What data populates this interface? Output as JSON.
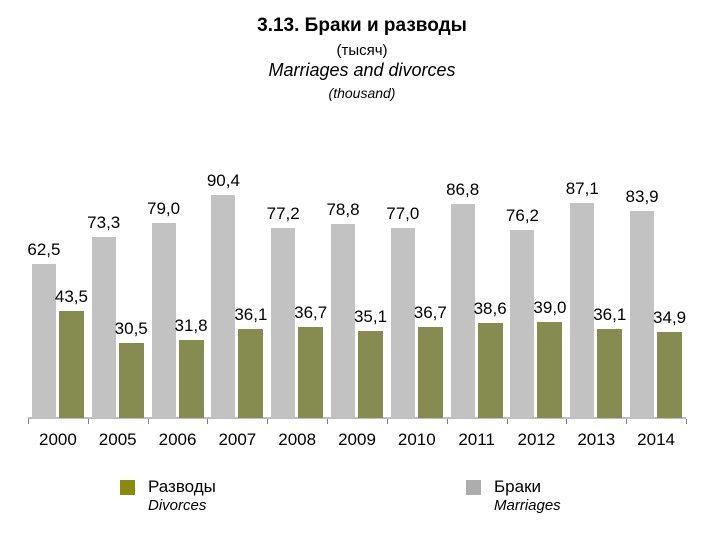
{
  "header": {
    "title_ru": "3.13. Браки и разводы",
    "unit_ru": "(тысяч)",
    "title_en": "Marriages and divorces",
    "unit_en": "(thousand)"
  },
  "legend": {
    "divorces": {
      "ru": "Разводы",
      "en": "Divorces",
      "swatch_color": "#8a8b0a"
    },
    "marriages": {
      "ru": "Браки",
      "en": "Marriages",
      "swatch_color": "#adadad"
    }
  },
  "colors": {
    "marriages_bar": "#c2c2c2",
    "divorces_bar": "#868c50",
    "axis_line": "#bdbdbd",
    "tick": "#7f7f7f",
    "text": "#000000",
    "background": "#ffffff"
  },
  "chart_data": {
    "type": "bar",
    "title": "3.13. Браки и разводы",
    "subtitle": "(тысяч)",
    "title_en": "Marriages and divorces",
    "subtitle_en": "(thousand)",
    "xlabel": "",
    "ylabel": "",
    "ylim": [
      0,
      100
    ],
    "grid": false,
    "legend_position": "bottom",
    "value_labels": true,
    "decimal_separator": ",",
    "categories": [
      "2000",
      "2005",
      "2006",
      "2007",
      "2008",
      "2009",
      "2010",
      "2011",
      "2012",
      "2013",
      "2014"
    ],
    "series": [
      {
        "name": "Браки",
        "name_en": "Marriages",
        "color": "#c2c2c2",
        "values": [
          62.5,
          73.3,
          79.0,
          90.4,
          77.2,
          78.8,
          77.0,
          86.8,
          76.2,
          87.1,
          83.9
        ]
      },
      {
        "name": "Разводы",
        "name_en": "Divorces",
        "color": "#868c50",
        "values": [
          43.5,
          30.5,
          31.8,
          36.1,
          36.7,
          35.1,
          36.7,
          38.6,
          39.0,
          36.1,
          34.9
        ]
      }
    ]
  }
}
